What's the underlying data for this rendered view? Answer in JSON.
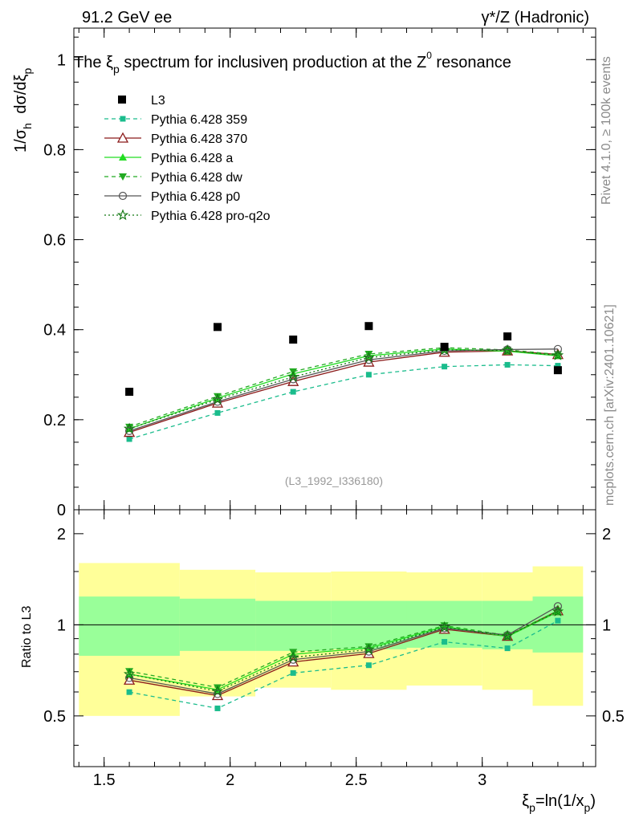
{
  "header": {
    "left": "91.2 GeV ee",
    "right_main": "γ*/Z (Hadronic)"
  },
  "side_labels": {
    "rivet": "Rivet 4.1.0, ≥ 100k events",
    "mcplots": "mcplots.cern.ch [arXiv:2401.10621]"
  },
  "chart_data": {
    "type": "line",
    "title": {
      "pre": "The ξ",
      "pre_sub": "p",
      "mid": " spectrum for inclusiveη production at the Z",
      "sup": "0",
      "post": " resonance"
    },
    "analysis_ref": "(L3_1992_I336180)",
    "ylabel": {
      "a": "1/σ",
      "a_sub": "h",
      "b": " dσ/dξ",
      "b_sub": "p"
    },
    "xlabel": {
      "a": "ξ",
      "a_sub": "p",
      "b": "=ln(1/x",
      "b_sub": "p",
      "c": ")"
    },
    "ratio_ylabel": "Ratio to L3",
    "xlim": [
      1.38,
      3.45
    ],
    "ylim": [
      0,
      1.07
    ],
    "ratio_ylim": [
      0.34,
      2.4
    ],
    "x_ticks": [
      "1.5",
      "2",
      "2.5",
      "3"
    ],
    "y_ticks": [
      "0",
      "0.2",
      "0.4",
      "0.6",
      "0.8",
      "1"
    ],
    "ratio_ticks": [
      "0.5",
      "1",
      "2"
    ],
    "x": [
      1.6,
      1.95,
      2.25,
      2.55,
      2.85,
      3.1,
      3.3
    ],
    "bin_edges": [
      1.4,
      1.8,
      2.1,
      2.4,
      2.7,
      3.0,
      3.2,
      3.4
    ],
    "data": {
      "name": "L3",
      "values": [
        0.262,
        0.406,
        0.378,
        0.408,
        0.362,
        0.385,
        0.31
      ],
      "band_inner": [
        [
          0.79,
          1.24
        ],
        [
          0.82,
          1.22
        ],
        [
          0.82,
          1.2
        ],
        [
          0.83,
          1.2
        ],
        [
          0.84,
          1.2
        ],
        [
          0.83,
          1.2
        ],
        [
          0.81,
          1.24
        ]
      ],
      "band_outer": [
        [
          0.5,
          1.6
        ],
        [
          0.58,
          1.52
        ],
        [
          0.62,
          1.49
        ],
        [
          0.61,
          1.5
        ],
        [
          0.63,
          1.49
        ],
        [
          0.61,
          1.49
        ],
        [
          0.54,
          1.56
        ]
      ]
    },
    "series": [
      {
        "name": "Pythia 6.428 359",
        "color": "#1abc8c",
        "dash": "5,4",
        "marker": "square-small",
        "values": [
          0.157,
          0.215,
          0.262,
          0.3,
          0.318,
          0.322,
          0.32
        ]
      },
      {
        "name": "Pythia 6.428 370",
        "color": "#8b1a1a",
        "dash": "",
        "marker": "triangle-open",
        "values": [
          0.172,
          0.237,
          0.285,
          0.328,
          0.35,
          0.353,
          0.345
        ]
      },
      {
        "name": "Pythia 6.428 a",
        "color": "#22dd22",
        "dash": "",
        "marker": "triangle-filled",
        "values": [
          0.18,
          0.248,
          0.302,
          0.342,
          0.357,
          0.352,
          0.342
        ]
      },
      {
        "name": "Pythia 6.428 dw",
        "color": "#22aa22",
        "dash": "5,4",
        "marker": "triangle-down",
        "values": [
          0.184,
          0.252,
          0.307,
          0.346,
          0.36,
          0.355,
          0.345
        ]
      },
      {
        "name": "Pythia 6.428 p0",
        "color": "#555555",
        "dash": "",
        "marker": "circle-open",
        "values": [
          0.175,
          0.24,
          0.29,
          0.333,
          0.353,
          0.356,
          0.357
        ]
      },
      {
        "name": "Pythia 6.428 pro-q2o",
        "color": "#117711",
        "dash": "2,3",
        "marker": "star-open",
        "values": [
          0.18,
          0.245,
          0.295,
          0.338,
          0.355,
          0.354,
          0.343
        ]
      }
    ]
  }
}
